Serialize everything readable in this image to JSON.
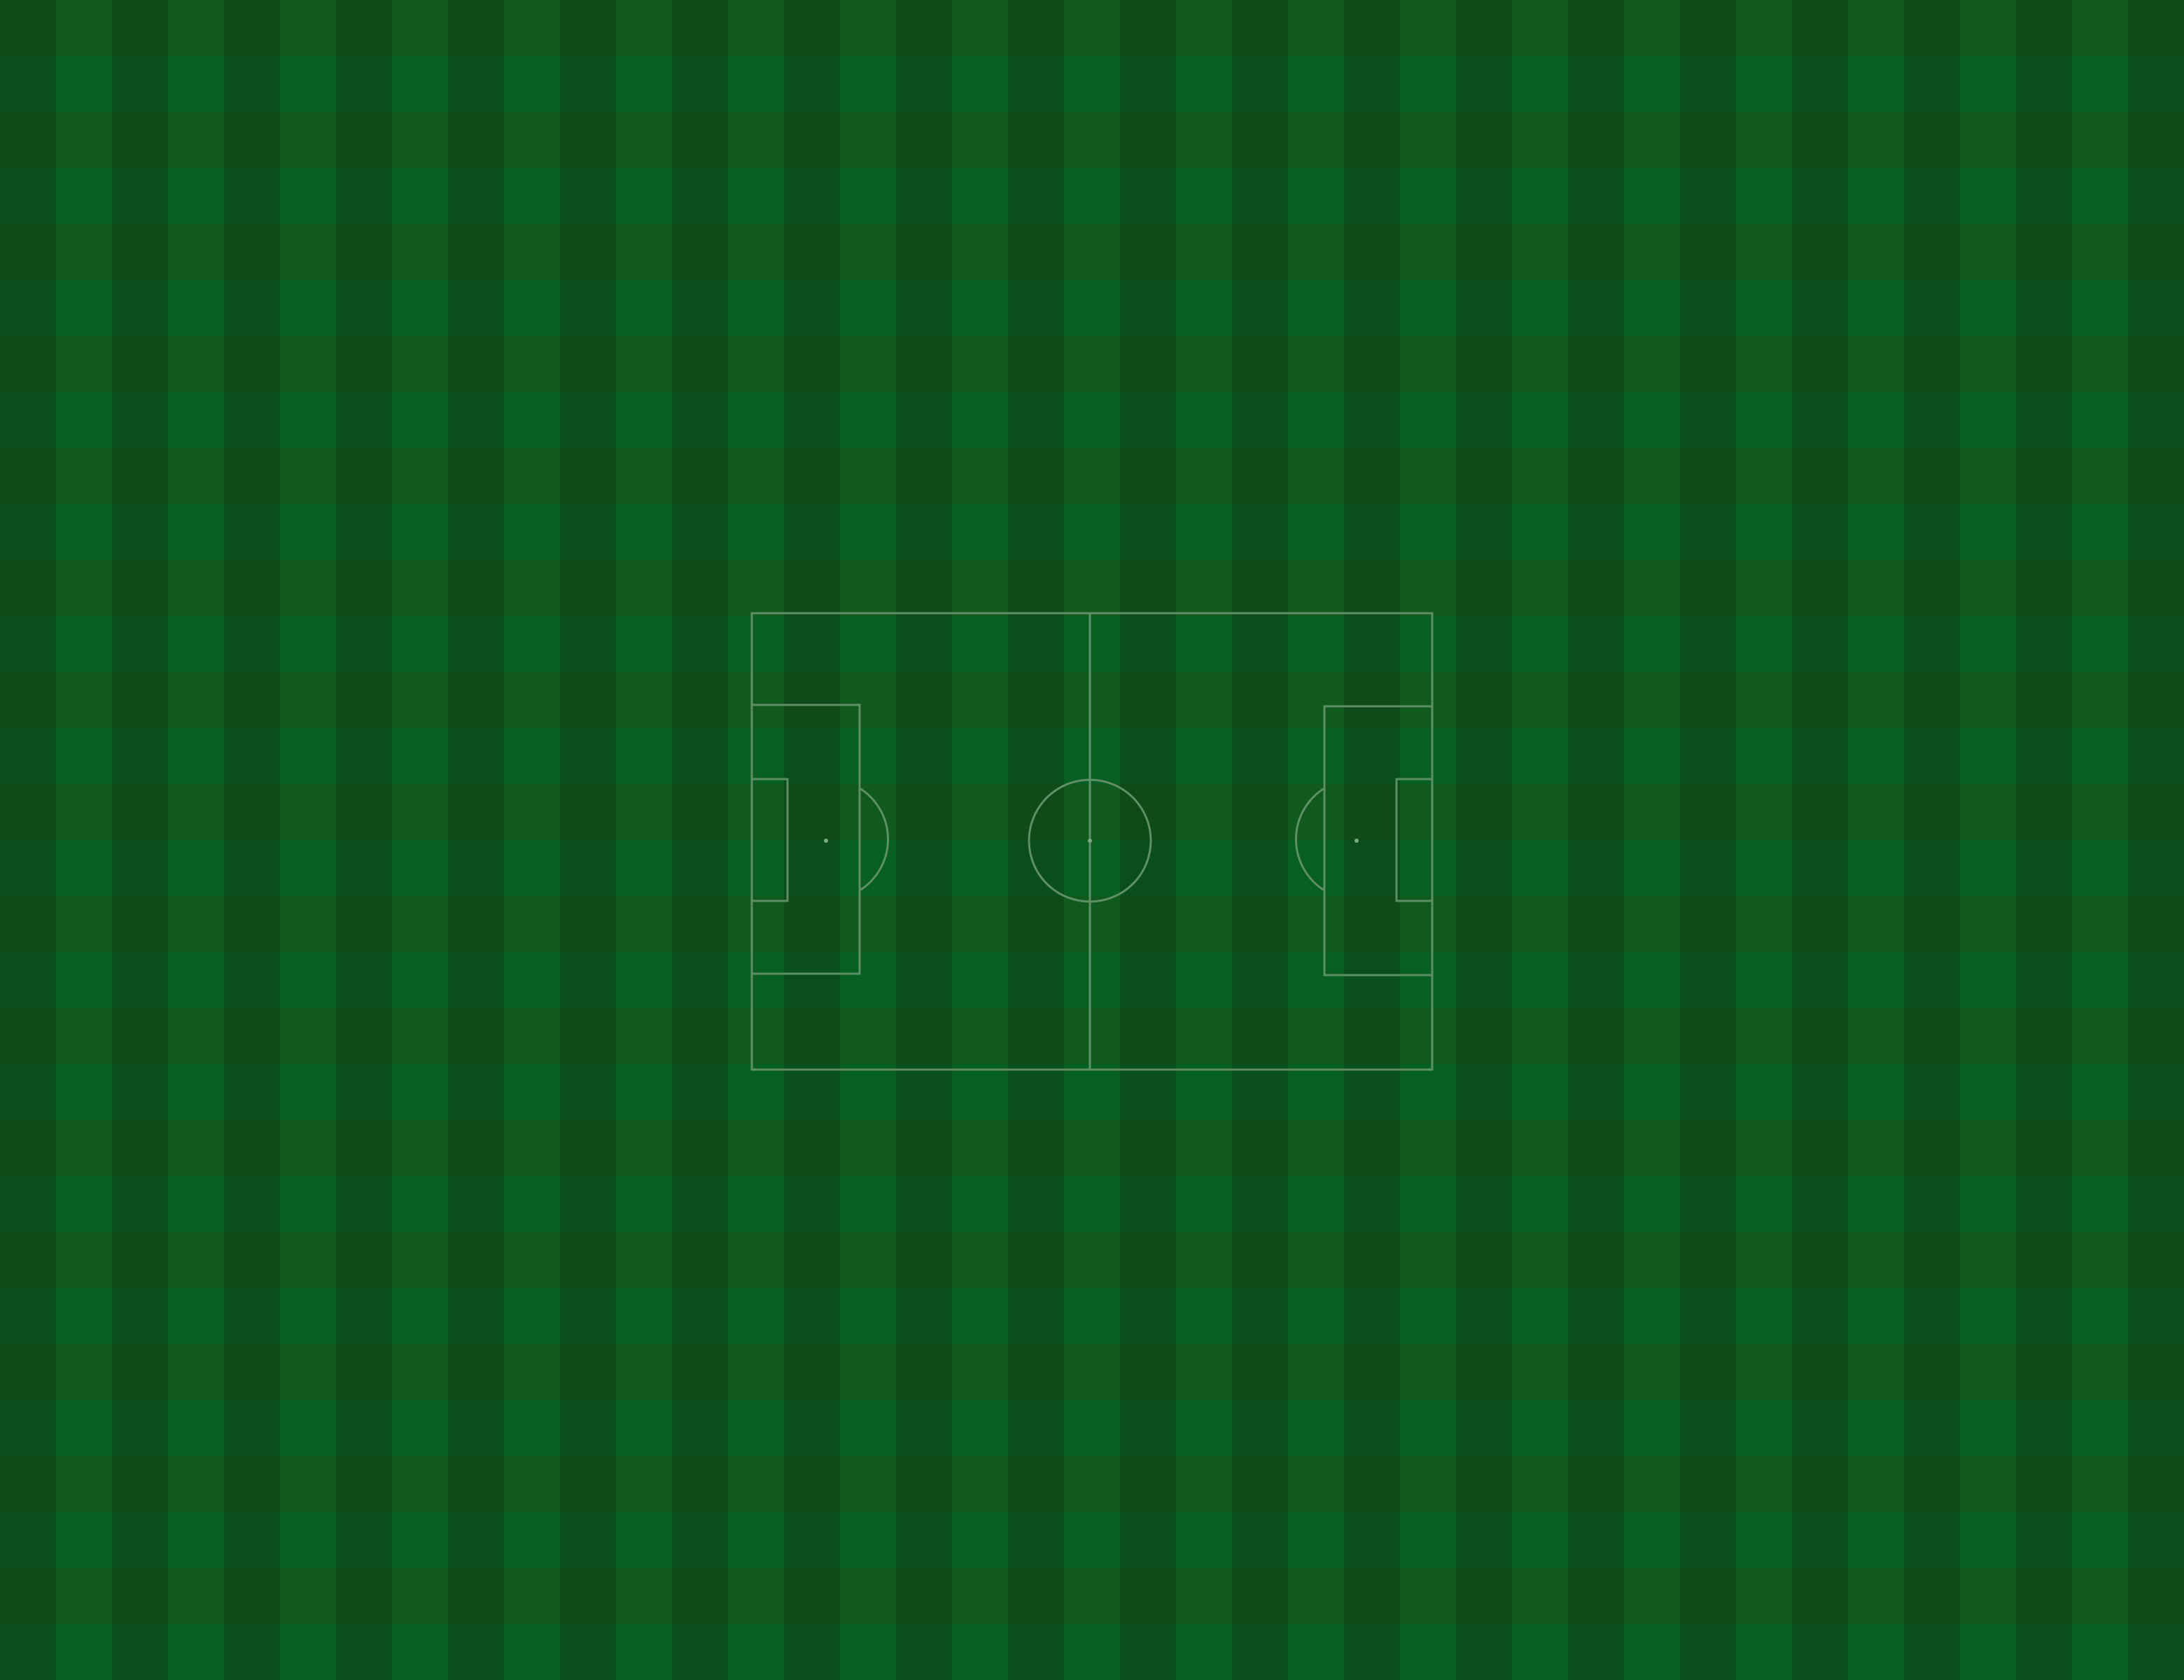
{
  "pitch": {
    "colors": {
      "stripe_dark_a": "#104a19",
      "stripe_dark_b": "#0a4e20",
      "stripe_mid": "#105a1d",
      "stripe_light": "#075f22",
      "line": "#5f8f66",
      "spot": "#7ea784"
    }
  }
}
